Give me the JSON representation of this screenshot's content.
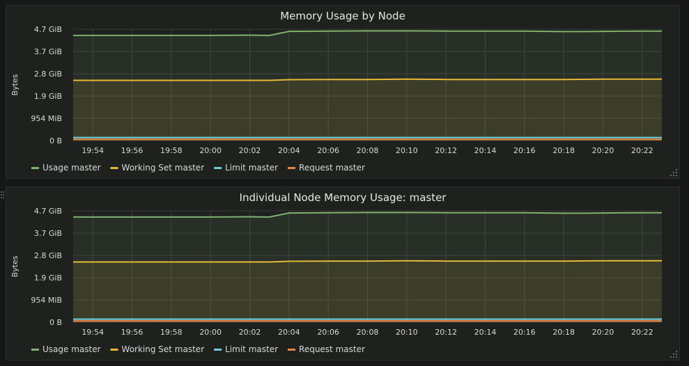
{
  "chart_data": [
    {
      "type": "area",
      "title": "Memory Usage by Node",
      "ylabel": "Bytes",
      "xlabel": "",
      "x_ticks": [
        "19:54",
        "19:56",
        "19:58",
        "20:00",
        "20:02",
        "20:04",
        "20:06",
        "20:08",
        "20:10",
        "20:12",
        "20:14",
        "20:16",
        "20:18",
        "20:20",
        "20:22"
      ],
      "y_ticks": [
        "4.7 GiB",
        "3.7 GiB",
        "2.8 GiB",
        "1.9 GiB",
        "954 MiB",
        "0 B"
      ],
      "ylim_gib": [
        0,
        4.7
      ],
      "x_range": [
        "19:53",
        "20:23"
      ],
      "grid": true,
      "legend_position": "bottom-left",
      "series": [
        {
          "name": "Usage master",
          "color": "#7eb26d",
          "x": [
            "19:53",
            "19:56",
            "19:58",
            "20:00",
            "20:02",
            "20:03",
            "20:04",
            "20:06",
            "20:08",
            "20:10",
            "20:12",
            "20:14",
            "20:16",
            "20:18",
            "20:19",
            "20:20",
            "20:22",
            "20:23"
          ],
          "values_gib": [
            4.44,
            4.44,
            4.44,
            4.44,
            4.45,
            4.44,
            4.61,
            4.62,
            4.63,
            4.63,
            4.62,
            4.62,
            4.62,
            4.6,
            4.6,
            4.61,
            4.62,
            4.62
          ]
        },
        {
          "name": "Working Set master",
          "color": "#eab839",
          "x": [
            "19:53",
            "19:56",
            "20:00",
            "20:03",
            "20:04",
            "20:06",
            "20:08",
            "20:10",
            "20:12",
            "20:14",
            "20:16",
            "20:18",
            "20:20",
            "20:23"
          ],
          "values_gib": [
            2.54,
            2.54,
            2.54,
            2.54,
            2.57,
            2.58,
            2.58,
            2.59,
            2.58,
            2.58,
            2.58,
            2.58,
            2.59,
            2.59
          ]
        },
        {
          "name": "Limit master",
          "color": "#6ed0e0",
          "x": [
            "19:53",
            "20:23"
          ],
          "values_gib": [
            0.13,
            0.13
          ]
        },
        {
          "name": "Request master",
          "color": "#ef843c",
          "x": [
            "19:53",
            "20:23"
          ],
          "values_gib": [
            0.05,
            0.05
          ]
        }
      ]
    },
    {
      "type": "area",
      "title": "Individual Node Memory Usage: master",
      "ylabel": "Bytes",
      "xlabel": "",
      "x_ticks": [
        "19:54",
        "19:56",
        "19:58",
        "20:00",
        "20:02",
        "20:04",
        "20:06",
        "20:08",
        "20:10",
        "20:12",
        "20:14",
        "20:16",
        "20:18",
        "20:20",
        "20:22"
      ],
      "y_ticks": [
        "4.7 GiB",
        "3.7 GiB",
        "2.8 GiB",
        "1.9 GiB",
        "954 MiB",
        "0 B"
      ],
      "ylim_gib": [
        0,
        4.7
      ],
      "x_range": [
        "19:53",
        "20:23"
      ],
      "grid": true,
      "legend_position": "bottom-left",
      "series": [
        {
          "name": "Usage master",
          "color": "#7eb26d",
          "x": [
            "19:53",
            "19:56",
            "19:58",
            "20:00",
            "20:02",
            "20:03",
            "20:04",
            "20:06",
            "20:08",
            "20:10",
            "20:12",
            "20:14",
            "20:16",
            "20:18",
            "20:19",
            "20:20",
            "20:22",
            "20:23"
          ],
          "values_gib": [
            4.44,
            4.44,
            4.44,
            4.44,
            4.45,
            4.44,
            4.61,
            4.62,
            4.63,
            4.63,
            4.62,
            4.62,
            4.62,
            4.6,
            4.6,
            4.61,
            4.62,
            4.62
          ]
        },
        {
          "name": "Working Set master",
          "color": "#eab839",
          "x": [
            "19:53",
            "19:56",
            "20:00",
            "20:03",
            "20:04",
            "20:06",
            "20:08",
            "20:10",
            "20:12",
            "20:14",
            "20:16",
            "20:18",
            "20:20",
            "20:23"
          ],
          "values_gib": [
            2.54,
            2.54,
            2.54,
            2.54,
            2.57,
            2.58,
            2.58,
            2.59,
            2.58,
            2.58,
            2.58,
            2.58,
            2.59,
            2.59
          ]
        },
        {
          "name": "Limit master",
          "color": "#6ed0e0",
          "x": [
            "19:53",
            "20:23"
          ],
          "values_gib": [
            0.13,
            0.13
          ]
        },
        {
          "name": "Request master",
          "color": "#ef843c",
          "x": [
            "19:53",
            "20:23"
          ],
          "values_gib": [
            0.05,
            0.05
          ]
        }
      ]
    }
  ]
}
